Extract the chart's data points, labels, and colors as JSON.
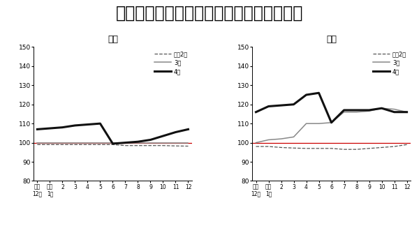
{
  "title": "農業生産資材の類別・月別価格指数の推移",
  "title_fontsize": 17,
  "chart1_title": "肥料",
  "chart2_title": "飼料",
  "x_labels": [
    "前年\n12月",
    "当年\n1月",
    "2",
    "3",
    "4",
    "5",
    "6",
    "7",
    "8",
    "9",
    "10",
    "11",
    "12"
  ],
  "ylim": [
    80,
    150
  ],
  "yticks": [
    80,
    90,
    100,
    110,
    120,
    130,
    140,
    150
  ],
  "legend_labels": [
    "令和2年",
    "3年",
    "4年"
  ],
  "red_line_value": 100,
  "fertilizer": {
    "reiwa2": [
      99.0,
      99.0,
      99.0,
      99.0,
      99.0,
      99.0,
      99.0,
      98.5,
      98.5,
      98.5,
      98.5,
      98.3,
      98.2
    ],
    "year3": [
      100.0,
      100.0,
      100.0,
      100.0,
      100.0,
      100.0,
      100.0,
      100.0,
      100.0,
      100.0,
      100.0,
      100.0,
      100.0
    ],
    "year4": [
      107.0,
      107.5,
      108.0,
      109.0,
      109.5,
      110.0,
      99.5,
      100.0,
      100.5,
      101.5,
      103.5,
      105.5,
      107.0
    ]
  },
  "feed": {
    "reiwa2": [
      98.0,
      98.0,
      97.5,
      97.2,
      97.0,
      97.0,
      97.0,
      96.5,
      96.5,
      97.0,
      97.5,
      98.0,
      99.0
    ],
    "year3": [
      100.0,
      101.5,
      102.0,
      103.0,
      110.0,
      110.0,
      110.5,
      116.0,
      116.0,
      116.5,
      118.0,
      117.5,
      116.0
    ],
    "year4": [
      116.0,
      119.0,
      119.5,
      120.0,
      125.0,
      126.0,
      110.5,
      117.0,
      117.0,
      117.0,
      118.0,
      116.0,
      116.0
    ]
  },
  "line_colors": {
    "reiwa2": "#555555",
    "year3": "#888888",
    "year4": "#111111"
  },
  "red_color": "#cc0000",
  "bg_color": "#ffffff"
}
